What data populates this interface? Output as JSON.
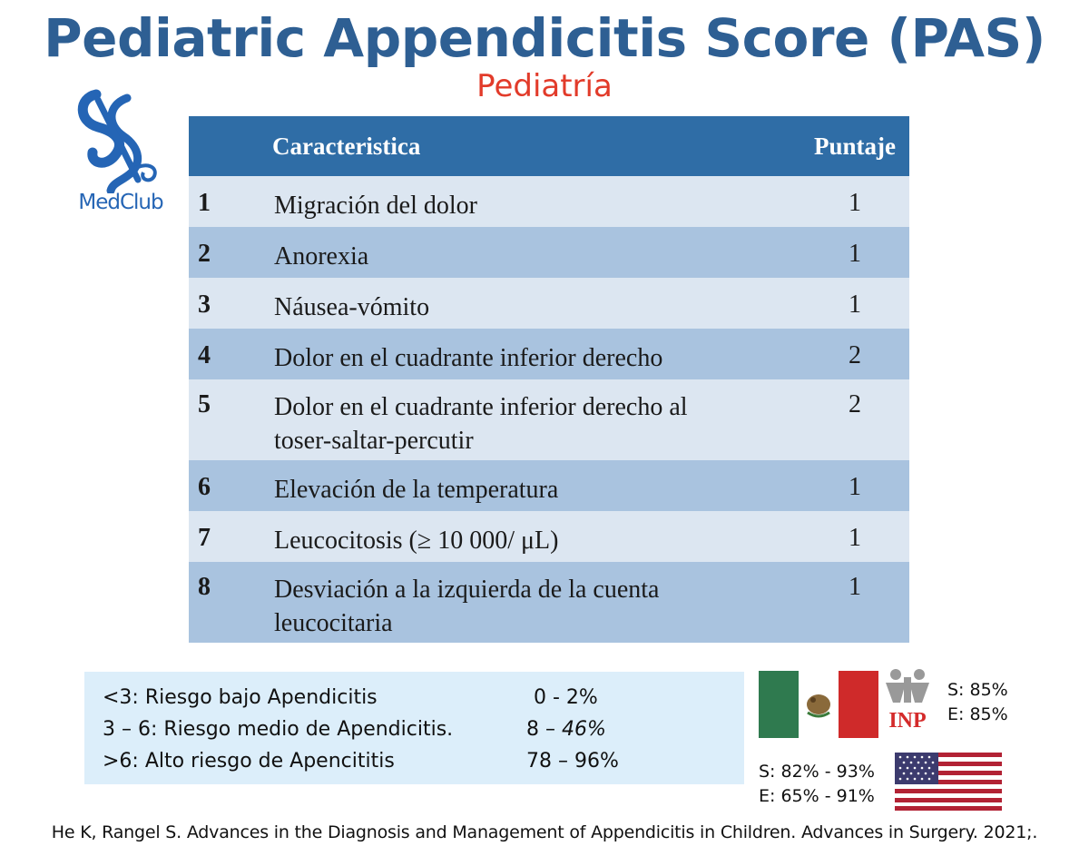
{
  "title": "Pediatric Appendicitis Score (PAS)",
  "subtitle": "Pediatría",
  "logo": {
    "icon": "caduceus-icon",
    "text": "MedClub",
    "color": "#2565b5"
  },
  "table": {
    "header": {
      "num": "",
      "characteristic": "Caracteristica",
      "score": "Puntaje"
    },
    "rows": [
      {
        "num": "1",
        "desc": "Migración del dolor",
        "score": "1"
      },
      {
        "num": "2",
        "desc": "Anorexia",
        "score": "1"
      },
      {
        "num": "3",
        "desc": "Náusea-vómito",
        "score": "1"
      },
      {
        "num": "4",
        "desc": "Dolor en el cuadrante inferior derecho",
        "score": "2"
      },
      {
        "num": "5",
        "desc_line1": "Dolor en el cuadrante inferior derecho al",
        "desc_line2": "toser-saltar-percutir",
        "score": "2"
      },
      {
        "num": "6",
        "desc": "Elevación de la temperatura",
        "score": "1"
      },
      {
        "num": "7",
        "desc": "Leucocitosis (≥ 10 000/ μL)",
        "score": "1"
      },
      {
        "num": "8",
        "desc_line1": "Desviación a la izquierda de la cuenta",
        "desc_line2": "leucocitaria",
        "score": "1"
      }
    ],
    "colors": {
      "header": "#2f6da6",
      "row_light": "#dce6f1",
      "row_dark": "#a9c3df"
    }
  },
  "risk": [
    {
      "label": "<3: Riesgo bajo Apendicitis",
      "value": "0 - 2%"
    },
    {
      "label": "3 – 6: Riesgo medio de Apendicitis.",
      "value_plain": "8 – ",
      "value_italic": "46%"
    },
    {
      "label": ">6: Alto riesgo de Apencititis",
      "value": "78 – 96%"
    }
  ],
  "mexico": {
    "flag_icon": "mexico-flag-icon",
    "logo_icon": "inp-logo-icon",
    "logo_text": "INP",
    "sensitivity": "S: 85%",
    "specificity": "E: 85%"
  },
  "usa": {
    "flag_icon": "usa-flag-icon",
    "sensitivity": "S: 82% - 93%",
    "specificity": "E: 65% - 91%"
  },
  "reference": "He K, Rangel S. Advances in the Diagnosis and Management of Appendicitis in Children. Advances in Surgery. 2021;.",
  "colors": {
    "title": "#2e5f93",
    "subtitle": "#e23b2a",
    "risk_box": "#dceefa"
  }
}
